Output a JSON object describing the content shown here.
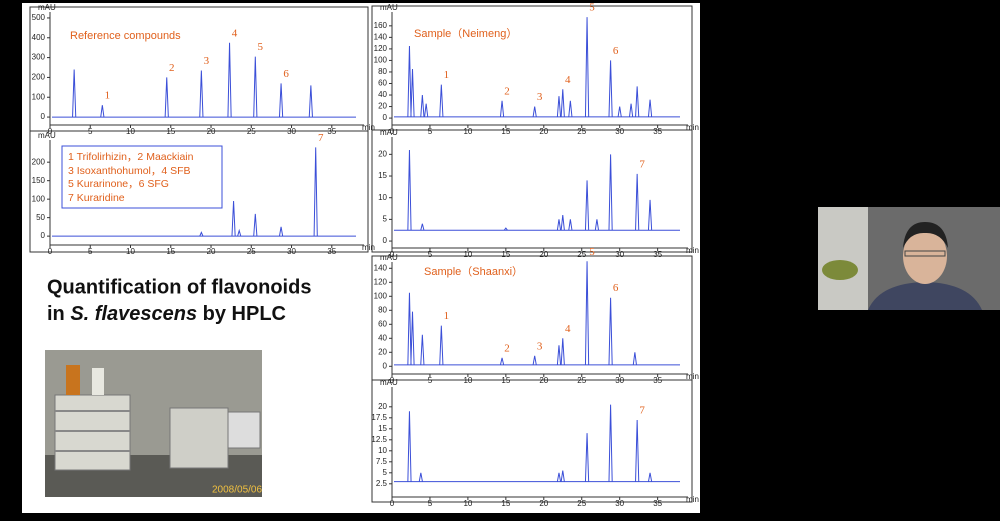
{
  "slide": {
    "title_line1": "Quantification of flavonoids",
    "title_pre": "in ",
    "title_italic": "S. flavescens",
    "title_post": " by HPLC",
    "legend": [
      "1 Trifolirhizin，2 Maackiain",
      "3 Isoxanthohumol，4 SFB",
      "5 Kurarinone，6 SFG",
      "7 Kuraridine"
    ],
    "photo_date": "2008/05/06"
  },
  "chromatograms": [
    {
      "title": "Reference compounds",
      "y_unit": "mAU",
      "x_unit": "min",
      "color": "#3b4fd8",
      "xlim": [
        0,
        39
      ],
      "xticks": [
        0,
        5,
        10,
        15,
        20,
        25,
        30,
        35
      ],
      "ylim": [
        -40,
        530
      ],
      "yticks": [
        0,
        100,
        200,
        300,
        400,
        500
      ],
      "baseline": 0,
      "peaks": [
        {
          "t": 3.0,
          "h": 240
        },
        {
          "t": 6.5,
          "h": 60,
          "label": "1"
        },
        {
          "t": 14.5,
          "h": 200,
          "label": "2"
        },
        {
          "t": 18.8,
          "h": 235,
          "label": "3"
        },
        {
          "t": 22.3,
          "h": 375,
          "label": "4"
        },
        {
          "t": 25.5,
          "h": 305,
          "label": "5"
        },
        {
          "t": 28.7,
          "h": 170,
          "label": "6"
        },
        {
          "t": 32.4,
          "h": 160
        }
      ]
    },
    {
      "y_unit": "mAU",
      "x_unit": "min",
      "color": "#3b4fd8",
      "xlim": [
        0,
        39
      ],
      "xticks": [
        0,
        5,
        10,
        15,
        20,
        25,
        30,
        35
      ],
      "ylim": [
        -24,
        260
      ],
      "yticks": [
        0,
        50,
        100,
        150,
        200
      ],
      "baseline": 0,
      "peaks": [
        {
          "t": 18.8,
          "h": 10
        },
        {
          "t": 22.8,
          "h": 95
        },
        {
          "t": 23.5,
          "h": 15
        },
        {
          "t": 25.5,
          "h": 60
        },
        {
          "t": 28.7,
          "h": 25
        },
        {
          "t": 33.0,
          "h": 240,
          "label": "7"
        }
      ]
    },
    {
      "title": "Sample（Neimeng）",
      "y_unit": "mAU",
      "x_unit": "min",
      "color": "#3b4fd8",
      "xlim": [
        0,
        39
      ],
      "xticks": [
        0,
        5,
        10,
        15,
        20,
        25,
        30,
        35
      ],
      "ylim": [
        -12,
        184
      ],
      "yticks": [
        0,
        20,
        40,
        60,
        80,
        100,
        120,
        140,
        160
      ],
      "baseline": 2,
      "peaks": [
        {
          "t": 2.3,
          "h": 125
        },
        {
          "t": 2.7,
          "h": 85
        },
        {
          "t": 4.0,
          "h": 40
        },
        {
          "t": 4.5,
          "h": 25
        },
        {
          "t": 6.5,
          "h": 58,
          "label": "1"
        },
        {
          "t": 14.5,
          "h": 30,
          "label": "2"
        },
        {
          "t": 18.8,
          "h": 20,
          "label": "3"
        },
        {
          "t": 22.0,
          "h": 38
        },
        {
          "t": 22.5,
          "h": 50,
          "label": "4"
        },
        {
          "t": 23.5,
          "h": 30
        },
        {
          "t": 25.7,
          "h": 175,
          "label": "5"
        },
        {
          "t": 28.8,
          "h": 100,
          "label": "6"
        },
        {
          "t": 30.0,
          "h": 20
        },
        {
          "t": 31.5,
          "h": 25
        },
        {
          "t": 32.3,
          "h": 55
        },
        {
          "t": 34.0,
          "h": 32
        }
      ]
    },
    {
      "y_unit": "mAU",
      "x_unit": "min",
      "color": "#3b4fd8",
      "xlim": [
        0,
        39
      ],
      "xticks": [
        0,
        5,
        10,
        15,
        20,
        25,
        30,
        35
      ],
      "ylim": [
        -1.6,
        24
      ],
      "yticks": [
        0,
        5,
        10,
        15,
        20
      ],
      "baseline": 2.5,
      "peaks": [
        {
          "t": 2.3,
          "h": 21
        },
        {
          "t": 4.0,
          "h": 4
        },
        {
          "t": 15.0,
          "h": 3
        },
        {
          "t": 22.0,
          "h": 5
        },
        {
          "t": 22.5,
          "h": 6
        },
        {
          "t": 23.5,
          "h": 5
        },
        {
          "t": 25.7,
          "h": 14
        },
        {
          "t": 27.0,
          "h": 5
        },
        {
          "t": 28.8,
          "h": 20
        },
        {
          "t": 32.3,
          "h": 15.5,
          "label": "7"
        },
        {
          "t": 34.0,
          "h": 9.5
        }
      ]
    },
    {
      "title": "Sample（Shaanxi）",
      "y_unit": "mAU",
      "x_unit": "min",
      "color": "#3b4fd8",
      "xlim": [
        0,
        39
      ],
      "xticks": [
        0,
        5,
        10,
        15,
        20,
        25,
        30,
        35
      ],
      "ylim": [
        -11,
        149
      ],
      "yticks": [
        0,
        20,
        40,
        60,
        80,
        100,
        120,
        140
      ],
      "baseline": 2,
      "peaks": [
        {
          "t": 2.3,
          "h": 105
        },
        {
          "t": 2.7,
          "h": 78
        },
        {
          "t": 4.0,
          "h": 45
        },
        {
          "t": 6.5,
          "h": 58,
          "label": "1"
        },
        {
          "t": 14.5,
          "h": 12,
          "label": "2"
        },
        {
          "t": 18.8,
          "h": 15,
          "label": "3"
        },
        {
          "t": 22.0,
          "h": 30
        },
        {
          "t": 22.5,
          "h": 40,
          "label": "4"
        },
        {
          "t": 25.7,
          "h": 150,
          "label": "5"
        },
        {
          "t": 28.8,
          "h": 98,
          "label": "6"
        },
        {
          "t": 32.0,
          "h": 20
        }
      ]
    },
    {
      "y_unit": "mAU",
      "x_unit": "min",
      "color": "#3b4fd8",
      "xlim": [
        0,
        39
      ],
      "xticks": [
        0,
        5,
        10,
        15,
        20,
        25,
        30,
        35
      ],
      "ylim": [
        -0.5,
        24.5
      ],
      "yticks": [
        2.5,
        5,
        7.5,
        10,
        12.5,
        15,
        17.5,
        20
      ],
      "baseline": 3,
      "peaks": [
        {
          "t": 2.3,
          "h": 19
        },
        {
          "t": 3.8,
          "h": 5
        },
        {
          "t": 22.0,
          "h": 5
        },
        {
          "t": 22.5,
          "h": 5.5
        },
        {
          "t": 25.7,
          "h": 14
        },
        {
          "t": 28.8,
          "h": 20.5
        },
        {
          "t": 32.3,
          "h": 17,
          "label": "7"
        },
        {
          "t": 34.0,
          "h": 5
        }
      ]
    }
  ]
}
